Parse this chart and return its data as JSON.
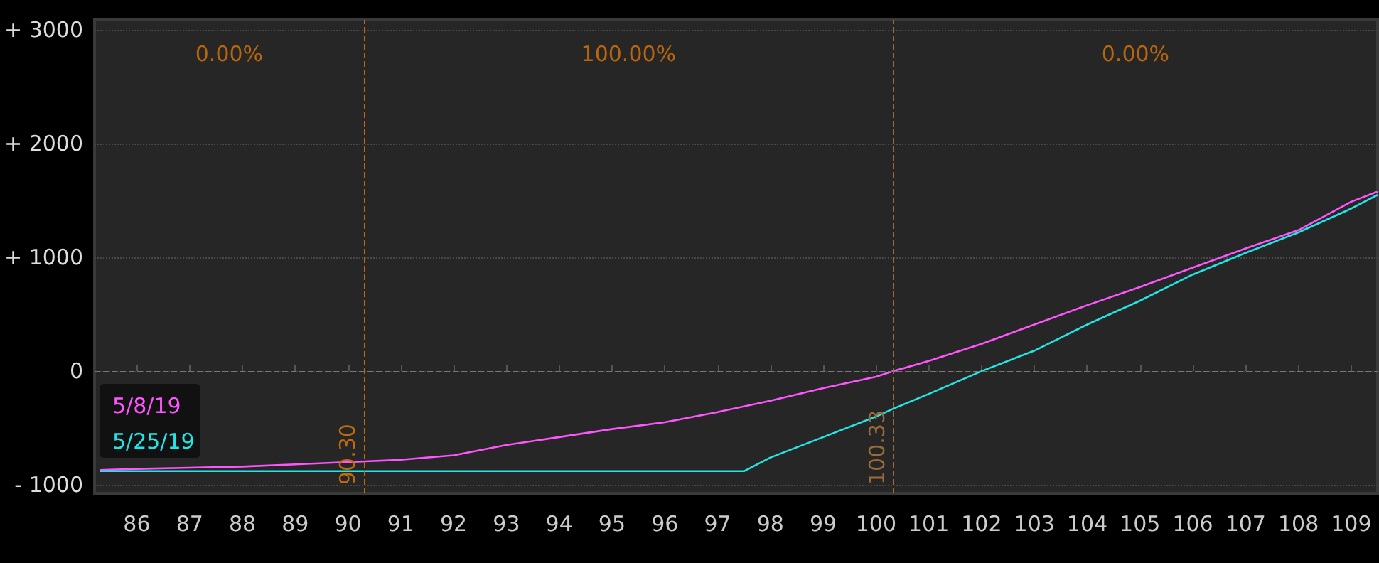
{
  "chart_data": {
    "type": "line",
    "x": [
      85.3,
      86,
      87,
      88,
      89,
      90,
      91,
      92,
      93,
      94,
      95,
      96,
      97,
      98,
      99,
      100,
      100.33,
      101,
      102,
      103,
      104,
      105,
      106,
      107,
      108,
      109,
      109.5
    ],
    "series": [
      {
        "name": "5/8/19",
        "color": "#ff55ff",
        "values": [
          -870,
          -860,
          -850,
          -840,
          -820,
          -800,
          -780,
          -740,
          -650,
          -580,
          -510,
          -450,
          -360,
          -260,
          -150,
          -50,
          0,
          90,
          240,
          410,
          580,
          740,
          910,
          1080,
          1240,
          1490,
          1580
        ]
      },
      {
        "name": "5/25/19",
        "color": "#22e5e5",
        "x": [
          85.3,
          97.5,
          98,
          99,
          100,
          100.33,
          101,
          102,
          103,
          104,
          105,
          106,
          107,
          108,
          109,
          109.5
        ],
        "values": [
          -880,
          -880,
          -760,
          -580,
          -400,
          -330,
          -200,
          0,
          180,
          410,
          620,
          850,
          1040,
          1220,
          1430,
          1550
        ]
      }
    ],
    "xlim": [
      85.2,
      109.5
    ],
    "xticks": [
      86,
      87,
      88,
      89,
      90,
      91,
      92,
      93,
      94,
      95,
      96,
      97,
      98,
      99,
      100,
      101,
      102,
      103,
      104,
      105,
      106,
      107,
      108,
      109
    ],
    "ylim": [
      -1075,
      3090
    ],
    "yticks": [
      {
        "value": -1000,
        "label": "- 1000"
      },
      0,
      {
        "value": 1000,
        "label": "+ 1000"
      },
      {
        "value": 2000,
        "label": "+ 2000"
      },
      {
        "value": 3000,
        "label": "+ 3000"
      }
    ],
    "ref_lines": [
      {
        "axis": "x",
        "value": 90.3,
        "label": "90.30",
        "color": "#c06a10",
        "line_style": "dashed"
      },
      {
        "axis": "x",
        "value": 100.33,
        "label": "100.33",
        "color": "#9a6a3a",
        "line_style": "dashed"
      },
      {
        "axis": "y",
        "value": 0,
        "color": "#777777",
        "line_style": "dashed"
      }
    ],
    "annotations": [
      "0.00%",
      "100.00%",
      "0.00%"
    ],
    "grid": "y",
    "legend": "bottom left",
    "line_style": "solid"
  }
}
